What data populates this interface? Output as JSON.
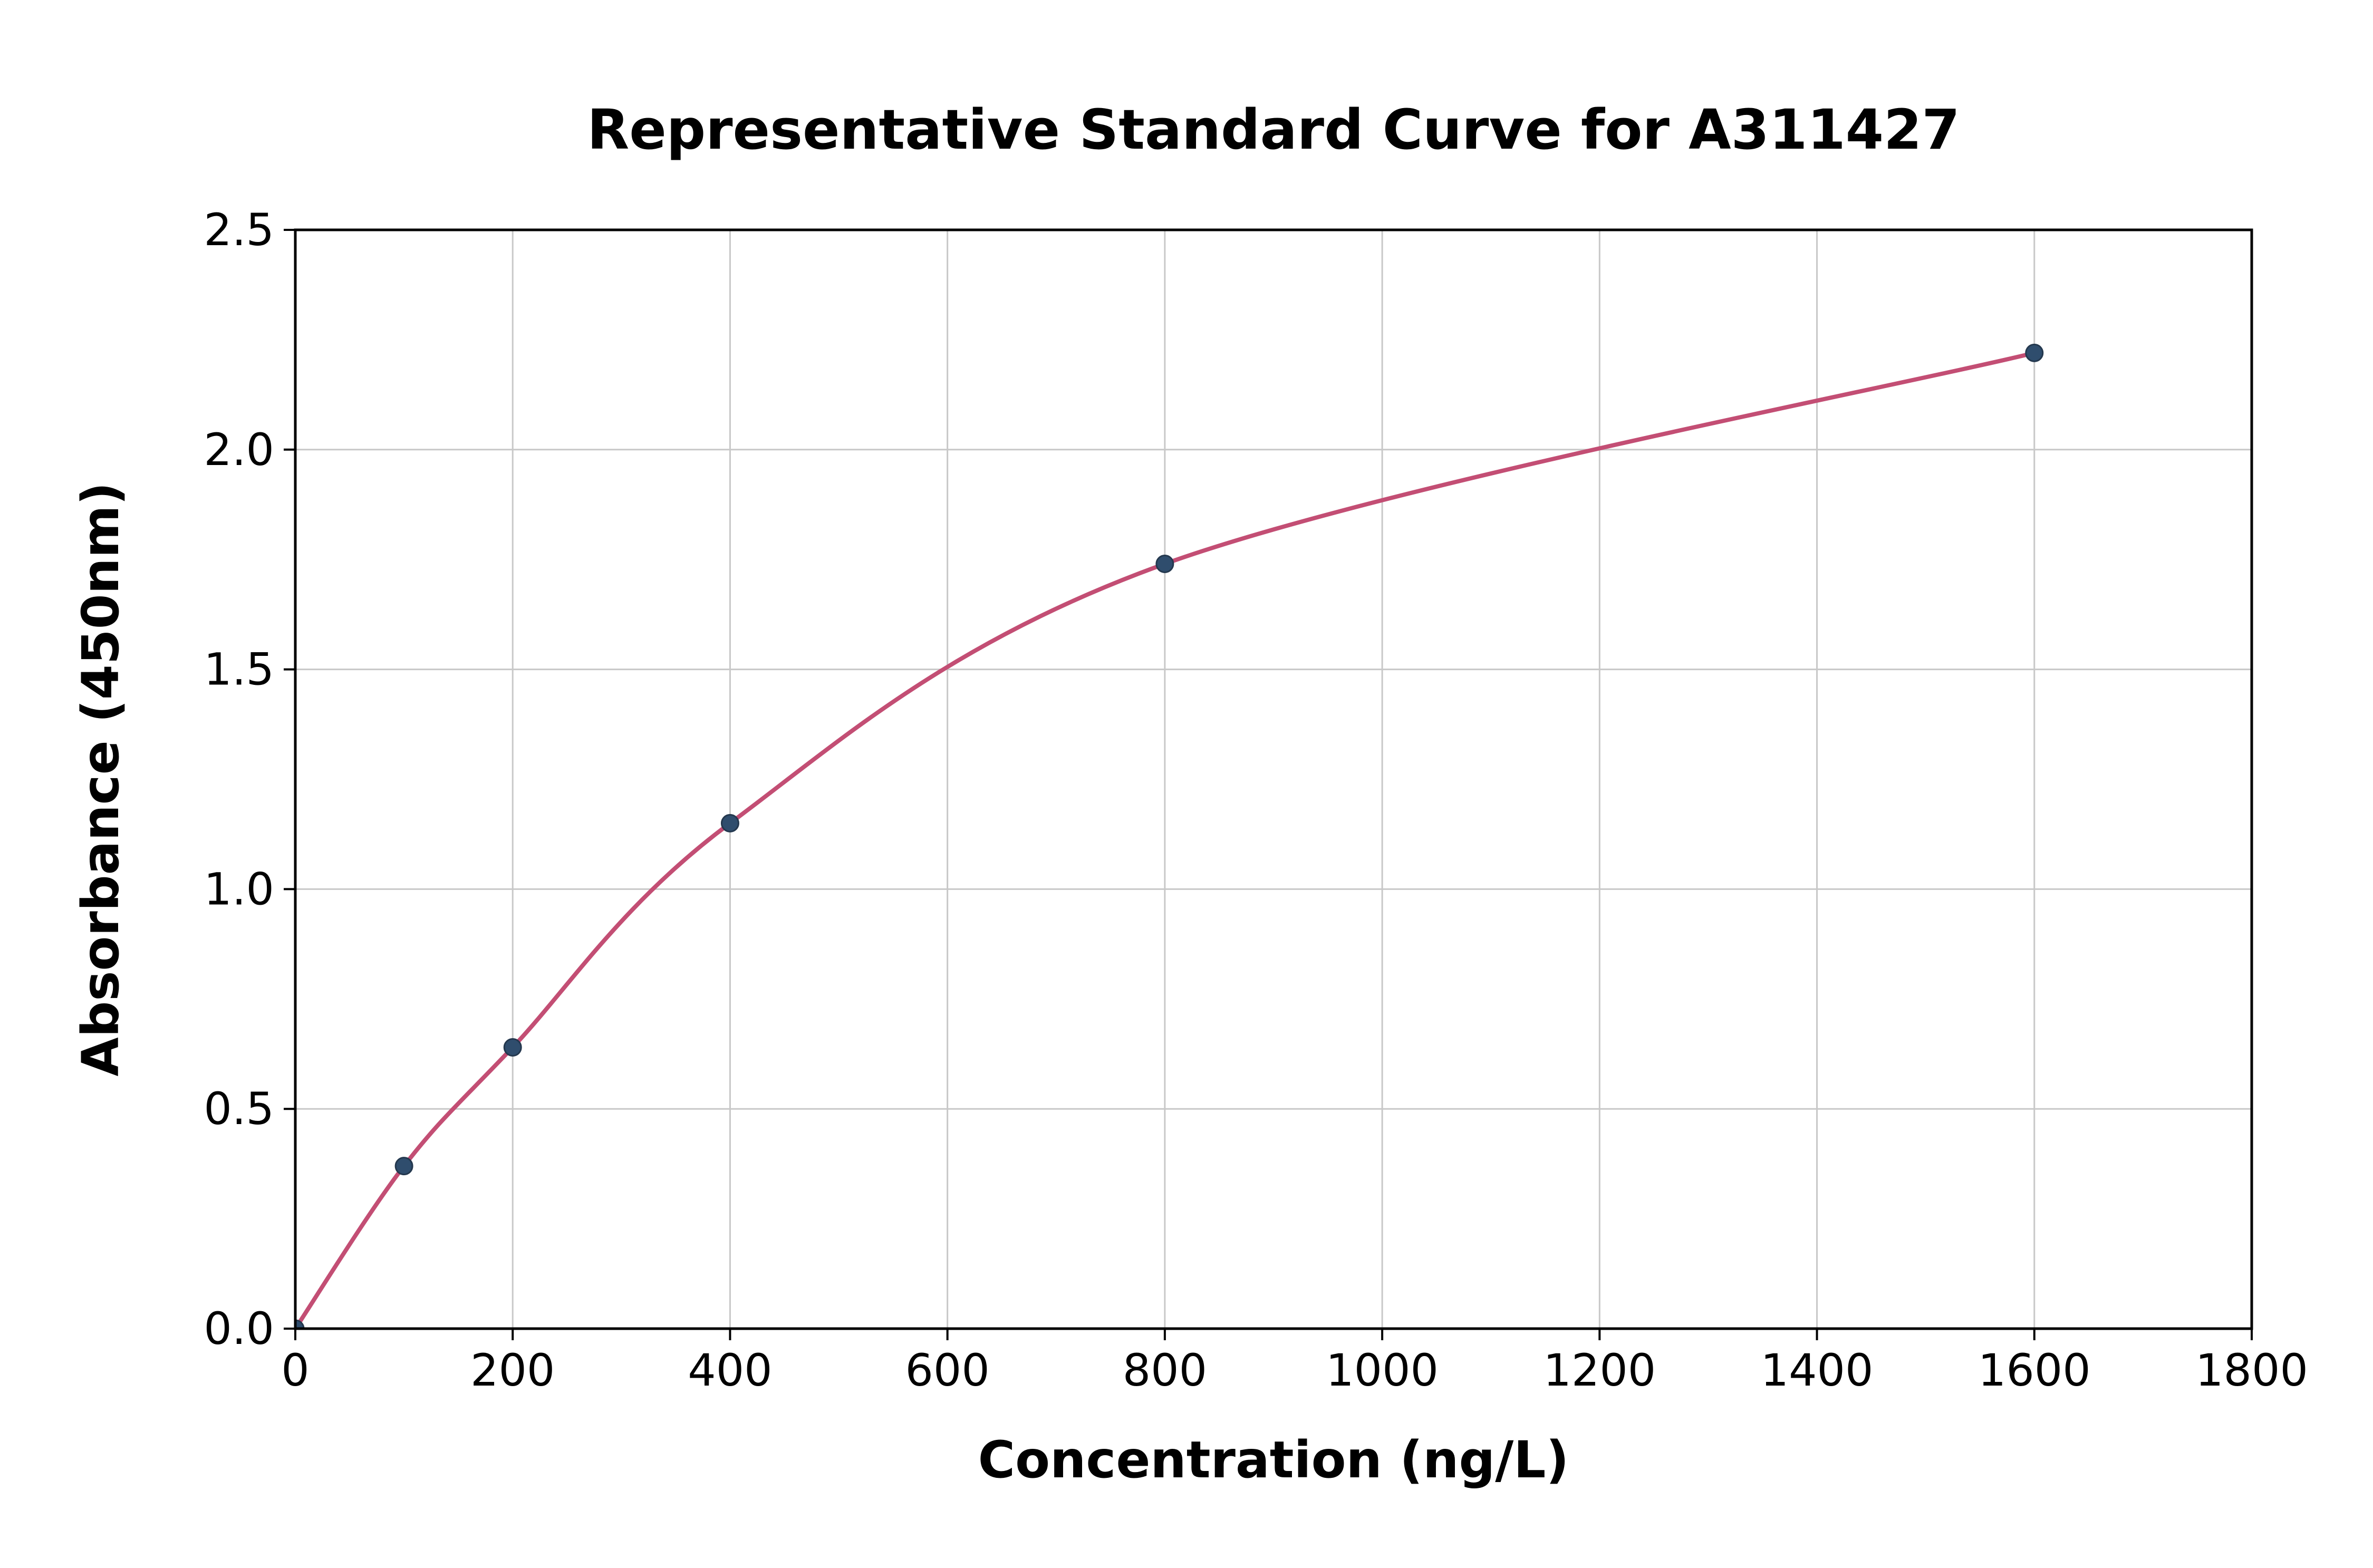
{
  "figure": {
    "background": "#ffffff"
  },
  "chart_data": {
    "type": "scatter",
    "title": "Representative Standard Curve for A311427",
    "xlabel": "Concentration (ng/L)",
    "ylabel": "Absorbance (450nm)",
    "xlim": [
      0,
      1800
    ],
    "ylim": [
      0,
      2.5
    ],
    "xticks": [
      0,
      200,
      400,
      600,
      800,
      1000,
      1200,
      1400,
      1600,
      1800
    ],
    "xtick_labels": [
      "0",
      "200",
      "400",
      "600",
      "800",
      "1000",
      "1200",
      "1400",
      "1600",
      "1800"
    ],
    "yticks": [
      0,
      0.5,
      1,
      1.5,
      2,
      2.5
    ],
    "ytick_labels": [
      "0.0",
      "0.5",
      "1.0",
      "1.5",
      "2.0",
      "2.5"
    ],
    "grid": true,
    "legend": "none",
    "series": [
      {
        "name": "standard-points",
        "style": "scatter-with-fit-curve",
        "x": [
          0,
          100,
          200,
          400,
          800,
          1600
        ],
        "y": [
          0.0,
          0.37,
          0.64,
          1.15,
          1.74,
          2.22
        ]
      }
    ],
    "colors": {
      "curve": "#c34e74",
      "marker_fill": "#2f4d6d",
      "marker_edge": "#24384e",
      "grid": "#c8c8c8",
      "axis": "#000000",
      "text": "#000000",
      "background": "#ffffff"
    }
  }
}
